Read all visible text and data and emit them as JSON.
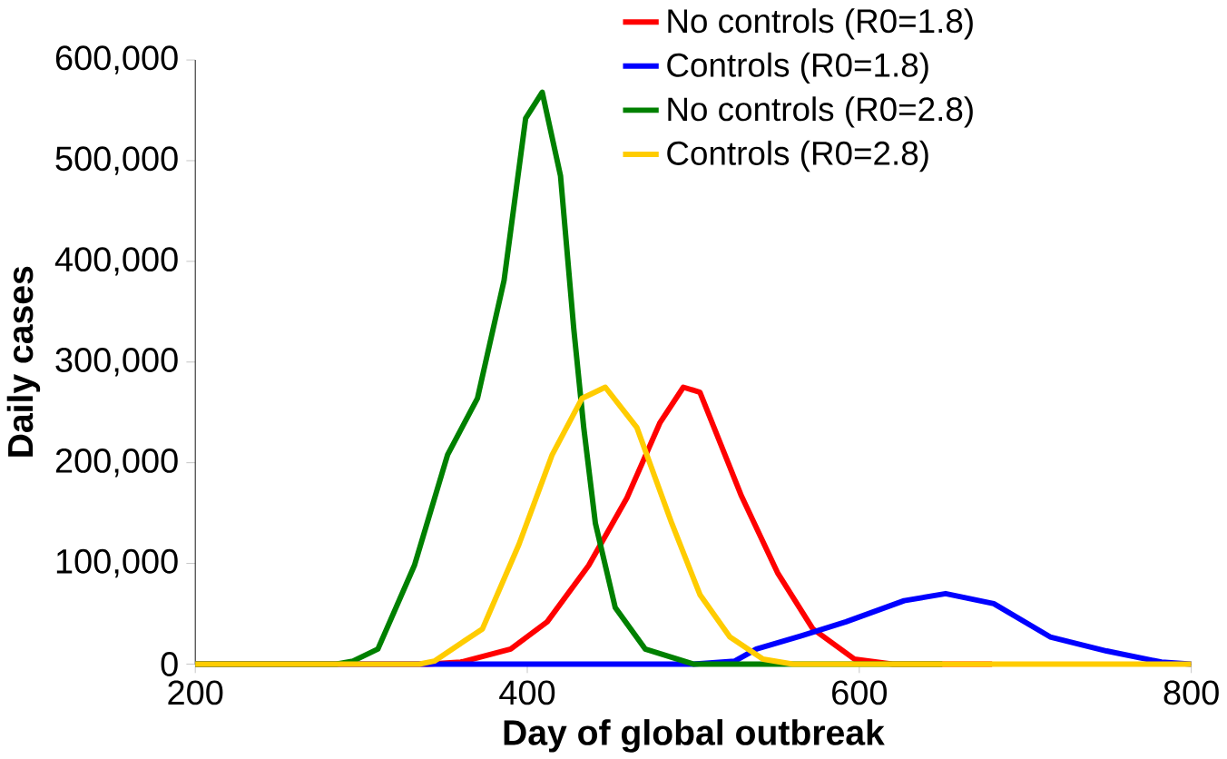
{
  "chart_data": {
    "type": "line",
    "xlabel": "Day of global outbreak",
    "ylabel": "Daily cases",
    "xlim": [
      200,
      800
    ],
    "ylim": [
      0,
      600000
    ],
    "xticks": [
      200,
      400,
      600,
      800
    ],
    "yticks": [
      {
        "value": 0,
        "label": "0"
      },
      {
        "value": 100000,
        "label": "100,000"
      },
      {
        "value": 200000,
        "label": "200,000"
      },
      {
        "value": 300000,
        "label": "300,000"
      },
      {
        "value": 400000,
        "label": "400,000"
      },
      {
        "value": 500000,
        "label": "500,000"
      },
      {
        "value": 600000,
        "label": "600,000"
      }
    ],
    "legend": "top right",
    "grid": false,
    "marker": "none",
    "line_style": "solid",
    "series": [
      {
        "name": "No controls (R0=1.8)",
        "color": "#ff0000",
        "x": [
          200,
          340,
          360,
          390,
          412,
          437,
          460,
          480,
          494,
          504,
          529,
          551,
          572,
          597,
          620,
          680
        ],
        "values": [
          0,
          0,
          2000,
          15000,
          42000,
          98000,
          165000,
          240000,
          275000,
          270000,
          167000,
          90000,
          35000,
          5000,
          0,
          0
        ]
      },
      {
        "name": "Controls (R0=1.8)",
        "color": "#0000ff",
        "x": [
          200,
          500,
          525,
          538,
          565,
          592,
          627,
          652,
          681,
          715,
          749,
          782,
          800
        ],
        "values": [
          0,
          0,
          3000,
          15000,
          28000,
          42000,
          63000,
          70000,
          60000,
          27000,
          13000,
          2000,
          0
        ]
      },
      {
        "name": "No controls (R0=2.8)",
        "color": "#008000",
        "x": [
          200,
          285,
          295,
          310,
          332,
          352,
          370,
          386,
          399,
          409,
          420,
          428,
          434,
          441,
          453,
          471,
          500,
          650
        ],
        "values": [
          0,
          0,
          3000,
          15000,
          98000,
          208000,
          264000,
          381000,
          542000,
          568000,
          485000,
          333000,
          235000,
          140000,
          56000,
          15000,
          0,
          0
        ]
      },
      {
        "name": "Controls (R0=2.8)",
        "color": "#ffcc00",
        "x": [
          200,
          335,
          344,
          373,
          395,
          415,
          433,
          447,
          466,
          487,
          504,
          522,
          542,
          560,
          800
        ],
        "values": [
          0,
          0,
          3000,
          35000,
          119000,
          208000,
          264000,
          275000,
          235000,
          140000,
          69000,
          27000,
          5000,
          0,
          0
        ]
      }
    ]
  }
}
